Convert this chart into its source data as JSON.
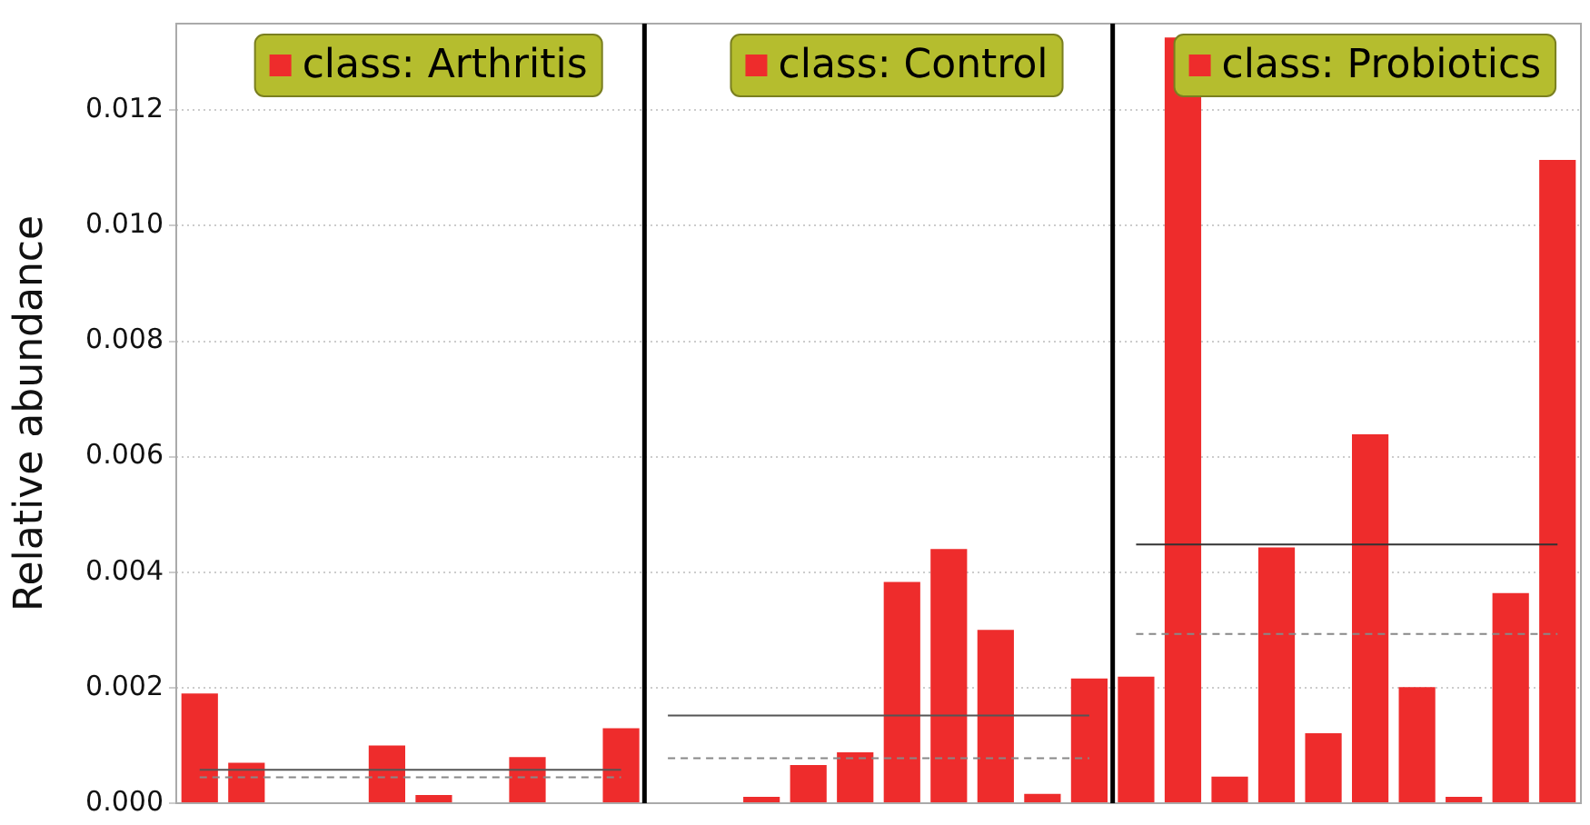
{
  "chart_data": {
    "type": "bar",
    "ylabel": "Relative abundance",
    "categories": [
      null,
      null,
      null,
      null,
      null,
      null,
      null,
      null,
      null,
      null,
      null,
      null,
      null,
      null,
      null,
      null,
      null,
      null,
      null,
      null,
      null,
      null,
      null,
      null,
      null,
      null,
      null,
      null,
      null,
      null
    ],
    "series": [
      {
        "name": "class: Arthritis",
        "color": "#ee2c2c",
        "values": [
          0.0019,
          0.0007,
          0,
          0,
          0.001,
          0.00014,
          0,
          0.0008,
          0,
          0.0013,
          null,
          null,
          null,
          null,
          null,
          null,
          null,
          null,
          null,
          null,
          null,
          null,
          null,
          null,
          null,
          null,
          null,
          null,
          null,
          null
        ]
      },
      {
        "name": "class: Control",
        "color": "#ee2c2c",
        "values": [
          null,
          null,
          null,
          null,
          null,
          null,
          null,
          null,
          null,
          null,
          0,
          0,
          0.00011,
          0.00066,
          0.00088,
          0.00383,
          0.0044,
          0.003,
          0.00016,
          0.00216,
          null,
          null,
          null,
          null,
          null,
          null,
          null,
          null,
          null,
          null
        ]
      },
      {
        "name": "class: Probiotics",
        "color": "#ee2c2c",
        "values": [
          null,
          null,
          null,
          null,
          null,
          null,
          null,
          null,
          null,
          null,
          null,
          null,
          null,
          null,
          null,
          null,
          null,
          null,
          null,
          null,
          0.00219,
          0.01326,
          0.00046,
          0.00443,
          0.00121,
          0.00639,
          0.00201,
          0.00011,
          0.00364,
          0.01114
        ]
      },
      {
        "type": "line",
        "color": "#555555",
        "line_style": "solid",
        "values": [
          0.00058,
          0.00058,
          0.00058,
          0.00058,
          0.00058,
          0.00058,
          0.00058,
          0.00058,
          0.00058,
          0.00058,
          null,
          null,
          null,
          null,
          null,
          null,
          null,
          null,
          null,
          null,
          null,
          null,
          null,
          null,
          null,
          null,
          null,
          null,
          null,
          null
        ]
      },
      {
        "type": "line",
        "color": "#888888",
        "line_style": "dashed",
        "values": [
          0.00045,
          0.00045,
          0.00045,
          0.00045,
          0.00045,
          0.00045,
          0.00045,
          0.00045,
          0.00045,
          0.00045,
          null,
          null,
          null,
          null,
          null,
          null,
          null,
          null,
          null,
          null,
          null,
          null,
          null,
          null,
          null,
          null,
          null,
          null,
          null,
          null
        ]
      },
      {
        "type": "line",
        "color": "#555555",
        "line_style": "solid",
        "values": [
          null,
          null,
          null,
          null,
          null,
          null,
          null,
          null,
          null,
          null,
          0.00152,
          0.00152,
          0.00152,
          0.00152,
          0.00152,
          0.00152,
          0.00152,
          0.00152,
          0.00152,
          0.00152,
          null,
          null,
          null,
          null,
          null,
          null,
          null,
          null,
          null,
          null
        ]
      },
      {
        "type": "line",
        "color": "#888888",
        "line_style": "dashed",
        "values": [
          null,
          null,
          null,
          null,
          null,
          null,
          null,
          null,
          null,
          null,
          0.00078,
          0.00078,
          0.00078,
          0.00078,
          0.00078,
          0.00078,
          0.00078,
          0.00078,
          0.00078,
          0.00078,
          null,
          null,
          null,
          null,
          null,
          null,
          null,
          null,
          null,
          null
        ]
      },
      {
        "type": "line",
        "color": "#333333",
        "line_style": "solid",
        "values": [
          null,
          null,
          null,
          null,
          null,
          null,
          null,
          null,
          null,
          null,
          null,
          null,
          null,
          null,
          null,
          null,
          null,
          null,
          null,
          null,
          0.00448,
          0.00448,
          0.00448,
          0.00448,
          0.00448,
          0.00448,
          0.00448,
          0.00448,
          0.00448,
          0.00448
        ]
      },
      {
        "type": "line",
        "color": "#888888",
        "line_style": "dashed",
        "values": [
          null,
          null,
          null,
          null,
          null,
          null,
          null,
          null,
          null,
          null,
          null,
          null,
          null,
          null,
          null,
          null,
          null,
          null,
          null,
          null,
          0.00293,
          0.00293,
          0.00293,
          0.00293,
          0.00293,
          0.00293,
          0.00293,
          0.00293,
          0.00293,
          0.00293
        ]
      }
    ],
    "ylim": [
      0,
      0.0135
    ],
    "yticks": [
      {
        "value": 0,
        "label": "0.000"
      },
      0.002,
      0.004,
      0.006,
      0.008,
      {
        "value": 0.01,
        "label": "0.010"
      },
      0.012
    ],
    "tick_labels": "y",
    "grid": "y",
    "legend": "top",
    "marker": "none"
  }
}
